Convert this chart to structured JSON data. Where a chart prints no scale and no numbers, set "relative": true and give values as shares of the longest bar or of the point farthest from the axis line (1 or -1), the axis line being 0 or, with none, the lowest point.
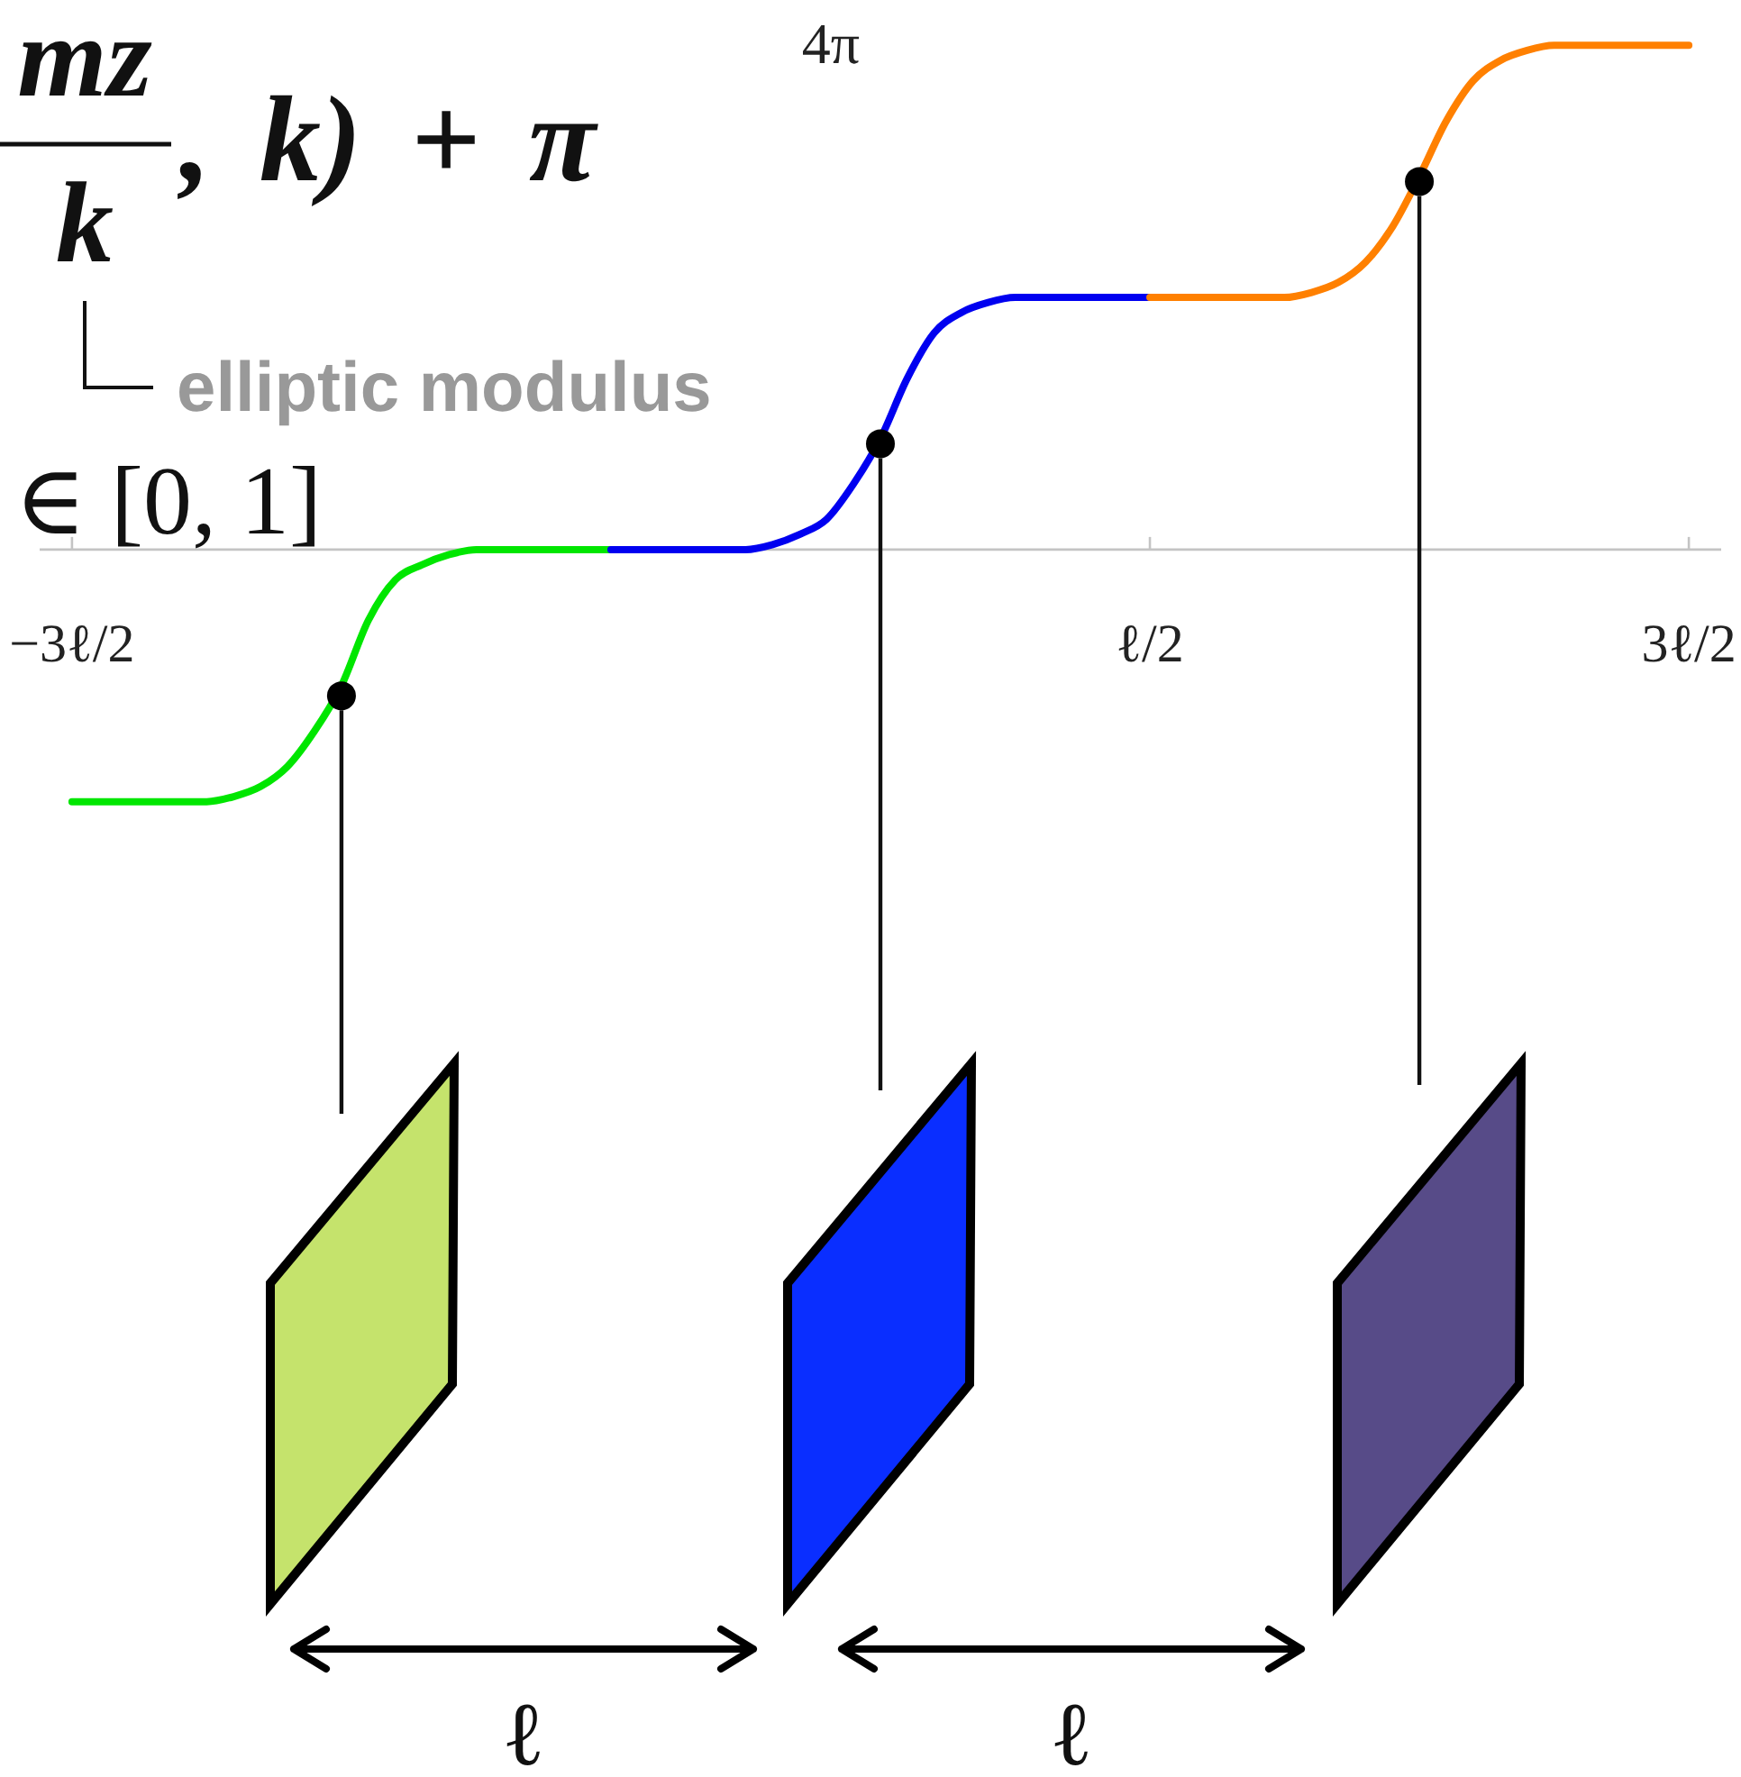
{
  "chart_data": {
    "type": "line",
    "relative": true,
    "annotations": [
      "mz",
      ", k) + π",
      "k",
      "4π",
      "elliptic modulus",
      "∈ [0, 1]",
      "ℓ",
      "ℓ"
    ],
    "categories": [
      "−3ℓ/2",
      null,
      null,
      null,
      null,
      null,
      null,
      null,
      null,
      null,
      null,
      null,
      null,
      null,
      null,
      null,
      null,
      null,
      null,
      null,
      null,
      null,
      null,
      null,
      null,
      null,
      null,
      null,
      null,
      null,
      null,
      null,
      null,
      null,
      null,
      null,
      null,
      null,
      null,
      null,
      "ℓ/2",
      null,
      null,
      null,
      null,
      null,
      null,
      null,
      null,
      null,
      null,
      null,
      null,
      null,
      null,
      null,
      null,
      null,
      null,
      null,
      "3ℓ/2"
    ],
    "line_style": "solid",
    "marker": "none",
    "series": [
      {
        "color": "#00e600",
        "values": [
          -0.5,
          -0.5,
          -0.5,
          -0.5,
          -0.5,
          -0.5,
          -0.49,
          -0.47,
          -0.43,
          -0.36,
          -0.27,
          -0.14,
          -0.06,
          -0.03,
          -0.01,
          0,
          0,
          0,
          0,
          0,
          0,
          null,
          null,
          null,
          null,
          null,
          null,
          null,
          null,
          null,
          null,
          null,
          null,
          null,
          null,
          null,
          null,
          null,
          null,
          null,
          null,
          null,
          null,
          null,
          null,
          null,
          null,
          null,
          null,
          null,
          null,
          null,
          null,
          null,
          null,
          null,
          null,
          null,
          null,
          null,
          null
        ]
      },
      {
        "color": "#0000f0",
        "values": [
          null,
          null,
          null,
          null,
          null,
          null,
          null,
          null,
          null,
          null,
          null,
          null,
          null,
          null,
          null,
          null,
          null,
          null,
          null,
          null,
          0,
          0,
          0,
          0,
          0,
          0,
          0.01,
          0.03,
          0.06,
          0.13,
          0.22,
          0.34,
          0.43,
          0.47,
          0.49,
          0.5,
          0.5,
          0.5,
          0.5,
          0.5,
          0.5,
          null,
          null,
          null,
          null,
          null,
          null,
          null,
          null,
          null,
          null,
          null,
          null,
          null,
          null,
          null,
          null,
          null,
          null,
          null,
          null
        ]
      },
      {
        "color": "#ff8000",
        "values": [
          null,
          null,
          null,
          null,
          null,
          null,
          null,
          null,
          null,
          null,
          null,
          null,
          null,
          null,
          null,
          null,
          null,
          null,
          null,
          null,
          null,
          null,
          null,
          null,
          null,
          null,
          null,
          null,
          null,
          null,
          null,
          null,
          null,
          null,
          null,
          null,
          null,
          null,
          null,
          null,
          0.5,
          0.5,
          0.5,
          0.5,
          0.5,
          0.5,
          0.51,
          0.53,
          0.57,
          0.64,
          0.74,
          0.85,
          0.93,
          0.97,
          0.99,
          1,
          1,
          1,
          1,
          1,
          1
        ]
      },
      {
        "type": "scatter",
        "color": "#000000",
        "marker": "circle",
        "values": [
          null,
          null,
          null,
          null,
          null,
          null,
          null,
          null,
          null,
          null,
          -0.29,
          null,
          null,
          null,
          null,
          null,
          null,
          null,
          null,
          null,
          null,
          null,
          null,
          null,
          null,
          null,
          null,
          null,
          null,
          null,
          0.21,
          null,
          null,
          null,
          null,
          null,
          null,
          null,
          null,
          null,
          null,
          null,
          null,
          null,
          null,
          null,
          null,
          null,
          null,
          null,
          0.73,
          null,
          null,
          null,
          null,
          null,
          null,
          null,
          null,
          null,
          null
        ]
      }
    ]
  }
}
